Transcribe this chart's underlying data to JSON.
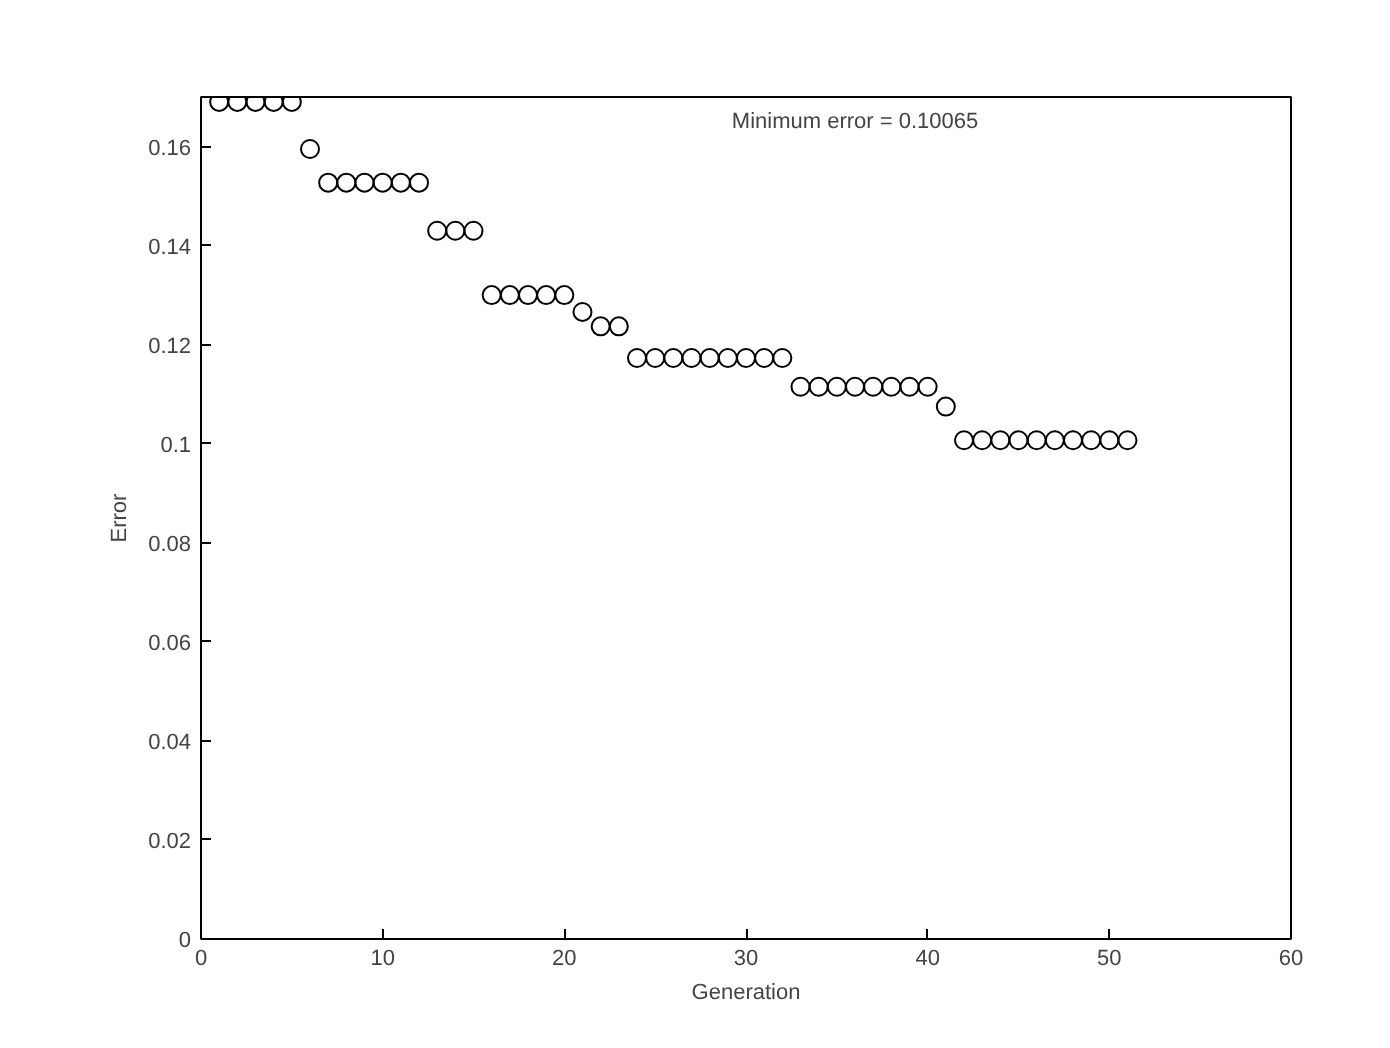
{
  "chart_data": {
    "type": "scatter",
    "xlabel": "Generation",
    "ylabel": "Error",
    "annotations": [
      "Minimum error = 0.10065"
    ],
    "x": [
      1,
      2,
      3,
      4,
      5,
      6,
      7,
      8,
      9,
      10,
      11,
      12,
      13,
      14,
      15,
      16,
      17,
      18,
      19,
      20,
      21,
      22,
      23,
      24,
      25,
      26,
      27,
      28,
      29,
      30,
      31,
      32,
      33,
      34,
      35,
      36,
      37,
      38,
      39,
      40,
      41,
      42,
      43,
      44,
      45,
      46,
      47,
      48,
      49,
      50,
      51
    ],
    "series": [
      {
        "color": "#000000",
        "values": [
          0.169,
          0.169,
          0.169,
          0.169,
          0.169,
          0.1595,
          0.1527,
          0.1527,
          0.1527,
          0.1527,
          0.1527,
          0.1527,
          0.143,
          0.143,
          0.143,
          0.13,
          0.13,
          0.13,
          0.13,
          0.13,
          0.1266,
          0.1237,
          0.1237,
          0.1173,
          0.1173,
          0.1173,
          0.1173,
          0.1173,
          0.1173,
          0.1173,
          0.1173,
          0.1173,
          0.1115,
          0.1115,
          0.1115,
          0.1115,
          0.1115,
          0.1115,
          0.1115,
          0.1115,
          0.1075,
          0.1007,
          0.1007,
          0.1007,
          0.1007,
          0.1007,
          0.1007,
          0.1007,
          0.1007,
          0.1007,
          0.1007
        ]
      }
    ],
    "xlim": [
      0,
      60
    ],
    "ylim": [
      0,
      0.17
    ],
    "xticks": [
      0,
      10,
      20,
      30,
      40,
      50,
      60
    ],
    "yticks": [
      0,
      0.02,
      0.04,
      0.06,
      0.08,
      {
        "value": 0.1,
        "label": "0.1"
      },
      0.12,
      0.14,
      0.16
    ],
    "grid": false,
    "marker": "circle"
  }
}
